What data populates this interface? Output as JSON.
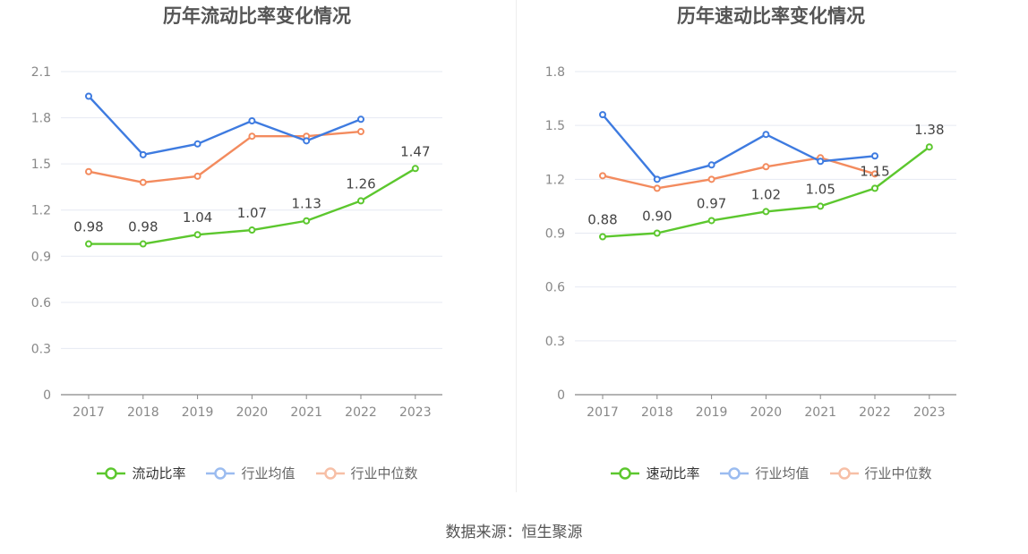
{
  "source": "数据来源：恒生聚源",
  "colors": {
    "company": "#5cc72e",
    "average": "#3e7be0",
    "median": "#f38b5e"
  },
  "chart_data": [
    {
      "type": "line",
      "title": "历年流动比率变化情况",
      "categories": [
        "2017",
        "2018",
        "2019",
        "2020",
        "2021",
        "2022",
        "2023"
      ],
      "y_ticks": [
        "0",
        "0.3",
        "0.6",
        "0.9",
        "1.2",
        "1.5",
        "1.8",
        "2.1"
      ],
      "ylim": [
        0,
        2.1
      ],
      "grid": true,
      "legend_position": "bottom",
      "series": [
        {
          "name": "流动比率",
          "color": "#5cc72e",
          "values": [
            0.98,
            0.98,
            1.04,
            1.07,
            1.13,
            1.26,
            1.47
          ],
          "labels": [
            "0.98",
            "0.98",
            "1.04",
            "1.07",
            "1.13",
            "1.26",
            "1.47"
          ]
        },
        {
          "name": "行业均值",
          "color": "#3e7be0",
          "values": [
            1.94,
            1.56,
            1.63,
            1.78,
            1.65,
            1.79,
            null
          ]
        },
        {
          "name": "行业中位数",
          "color": "#f38b5e",
          "values": [
            1.45,
            1.38,
            1.42,
            1.68,
            1.68,
            1.71,
            null
          ]
        }
      ]
    },
    {
      "type": "line",
      "title": "历年速动比率变化情况",
      "categories": [
        "2017",
        "2018",
        "2019",
        "2020",
        "2021",
        "2022",
        "2023"
      ],
      "y_ticks": [
        "0",
        "0.3",
        "0.6",
        "0.9",
        "1.2",
        "1.5",
        "1.8"
      ],
      "ylim": [
        0,
        1.8
      ],
      "grid": true,
      "legend_position": "bottom",
      "series": [
        {
          "name": "速动比率",
          "color": "#5cc72e",
          "values": [
            0.88,
            0.9,
            0.97,
            1.02,
            1.05,
            1.15,
            1.38
          ],
          "labels": [
            "0.88",
            "0.90",
            "0.97",
            "1.02",
            "1.05",
            "1.15",
            "1.38"
          ]
        },
        {
          "name": "行业均值",
          "color": "#3e7be0",
          "values": [
            1.56,
            1.2,
            1.28,
            1.45,
            1.3,
            1.33,
            null
          ]
        },
        {
          "name": "行业中位数",
          "color": "#f38b5e",
          "values": [
            1.22,
            1.15,
            1.2,
            1.27,
            1.32,
            1.23,
            null
          ]
        }
      ]
    }
  ]
}
